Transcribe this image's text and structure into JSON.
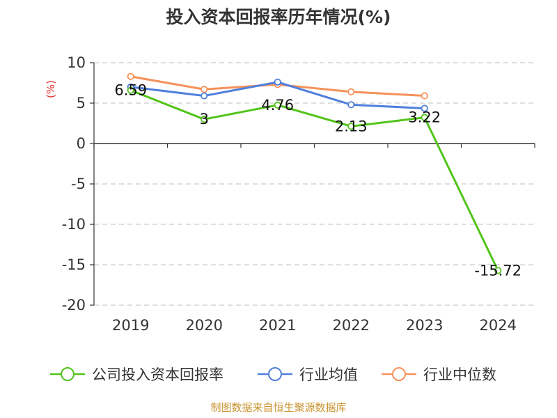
{
  "chart_data": {
    "type": "line",
    "title": "投入资本回报率历年情况(%)",
    "ylabel": "(%)",
    "xlabel": "",
    "categories": [
      "2019",
      "2020",
      "2021",
      "2022",
      "2023",
      "2024"
    ],
    "ylim": [
      -20,
      10
    ],
    "yticks": [
      10,
      5,
      0,
      -5,
      -10,
      -15,
      -20
    ],
    "grid": true,
    "legend_position": "bottom",
    "series": [
      {
        "name": "公司投入资本回报率",
        "color": "#52c41a",
        "values": [
          6.59,
          3,
          4.76,
          2.13,
          3.22,
          -15.72
        ],
        "labels": [
          "6.59",
          "3",
          "4.76",
          "2.13",
          "3.22",
          "-15.72"
        ]
      },
      {
        "name": "行业均值",
        "color": "#4f7fdc",
        "values": [
          7.0,
          5.9,
          7.6,
          4.8,
          4.35,
          null
        ]
      },
      {
        "name": "行业中位数",
        "color": "#f5925b",
        "values": [
          8.3,
          6.7,
          7.3,
          6.4,
          5.9,
          null
        ]
      }
    ],
    "source": "制图数据来自恒生聚源数据库"
  }
}
